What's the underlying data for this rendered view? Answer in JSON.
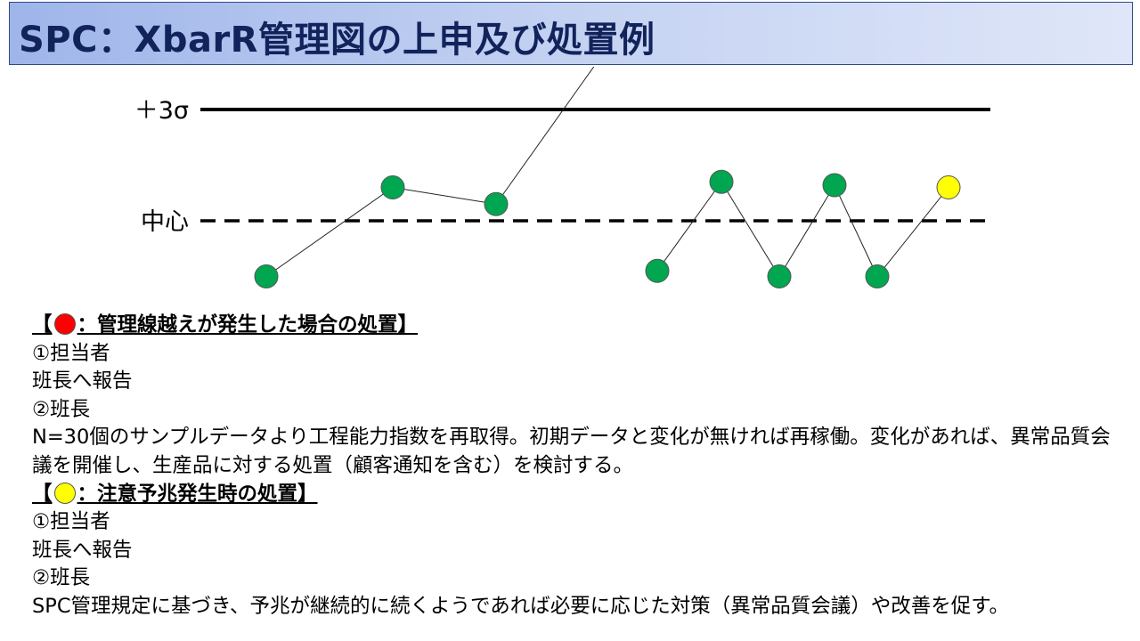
{
  "title": "SPC：XbarR管理図の上申及び処置例",
  "colors": {
    "title_text": "#12235c",
    "normal_point": "#00a650",
    "out_of_control_point": "#ff0000",
    "warning_point": "#ffff00"
  },
  "chart_data": {
    "type": "line",
    "limit_labels": {
      "ucl": "＋3σ",
      "center": "中心"
    },
    "segments": [
      {
        "points": [
          {
            "y": -0.5,
            "status": "normal"
          },
          {
            "y": 0.3,
            "status": "normal"
          },
          {
            "y": 0.15,
            "status": "normal"
          },
          {
            "y": 1.5,
            "status": "out_of_control"
          }
        ]
      },
      {
        "points": [
          {
            "y": -0.45,
            "status": "normal"
          },
          {
            "y": 0.35,
            "status": "normal"
          },
          {
            "y": -0.5,
            "status": "normal"
          },
          {
            "y": 0.32,
            "status": "normal"
          },
          {
            "y": -0.5,
            "status": "normal"
          },
          {
            "y": 0.3,
            "status": "warning"
          }
        ]
      }
    ]
  },
  "section_red": {
    "heading_pre": "【",
    "heading_post": "：管理線越えが発生した場合の処置】",
    "step1": "①担当者",
    "step1_action": "班長へ報告",
    "step2": "②班長",
    "step2_action": "N=30個のサンプルデータより工程能力指数を再取得。初期データと変化が無ければ再稼働。変化があれば、異常品質会議を開催し、生産品に対する処置（顧客通知を含む）を検討する。"
  },
  "section_yellow": {
    "heading_pre": "【",
    "heading_post": "：注意予兆発生時の処置】",
    "step1": "①担当者",
    "step1_action": "班長へ報告",
    "step2": "②班長",
    "step2_action": "SPC管理規定に基づき、予兆が継続的に続くようであれば必要に応じた対策（異常品質会議）や改善を促す。"
  }
}
